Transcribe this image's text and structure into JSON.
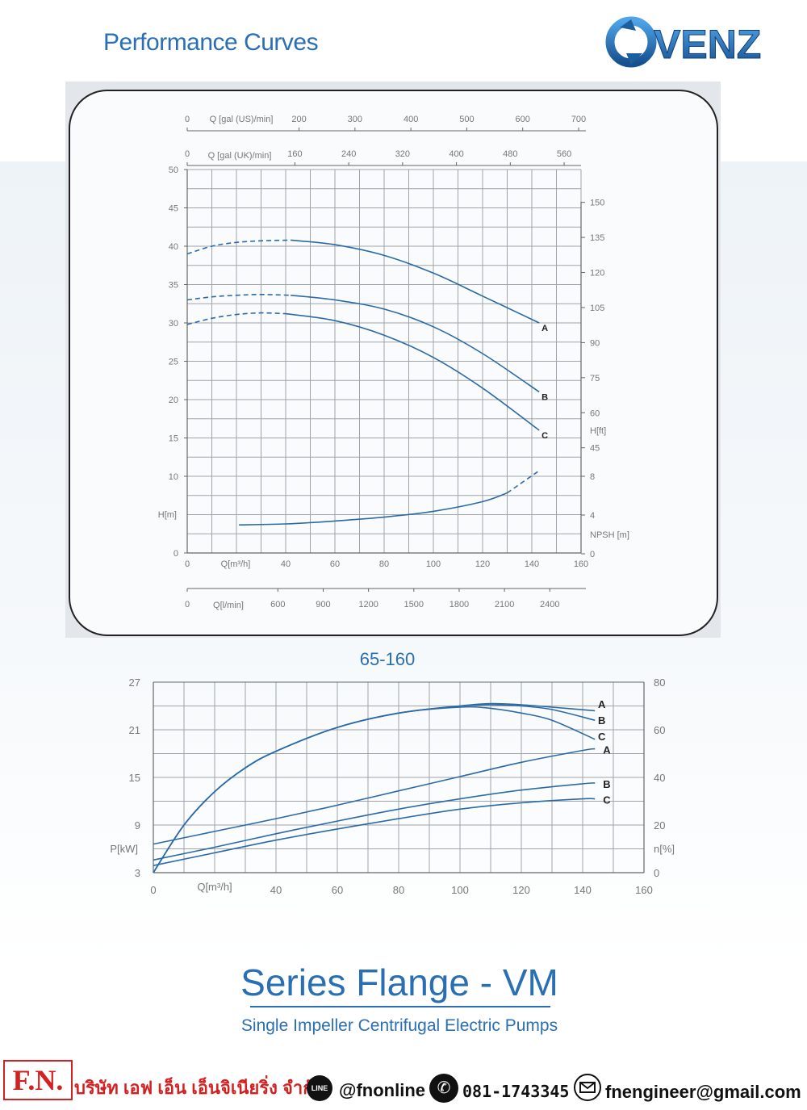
{
  "header": {
    "title": "Performance Curves",
    "logo_text": "OVENZ"
  },
  "chart_data": [
    {
      "type": "line",
      "axes": {
        "x_bottom": {
          "label": "Q[m³/h]",
          "range": [
            0,
            160
          ],
          "ticks": [
            "0",
            "40",
            "60",
            "80",
            "100",
            "120",
            "140",
            "160"
          ]
        },
        "x_top_us": {
          "label": "Q [gal (US)/min]",
          "ticks": [
            "0",
            "200",
            "300",
            "400",
            "500",
            "600",
            "700"
          ]
        },
        "x_top_uk": {
          "label": "Q [gal (UK)/min]",
          "ticks": [
            "0",
            "160",
            "240",
            "320",
            "400",
            "480",
            "560"
          ]
        },
        "x_lpm": {
          "label": "Q[l/min]",
          "ticks": [
            "0",
            "600",
            "900",
            "1200",
            "1500",
            "1800",
            "2100",
            "2400"
          ]
        },
        "y_left": {
          "label": "H[m]",
          "range": [
            0,
            50
          ],
          "ticks": [
            "0",
            "10",
            "15",
            "20",
            "25",
            "30",
            "35",
            "40",
            "45",
            "50"
          ]
        },
        "y_right_ft": {
          "label": "H[ft]",
          "ticks": [
            "90",
            "105",
            "120",
            "135",
            "150",
            "45",
            "60",
            "75"
          ]
        },
        "y_right_npsh": {
          "label": "NPSH [m]",
          "ticks": [
            "0",
            "4",
            "8"
          ]
        }
      },
      "grid": true,
      "series": [
        {
          "name": "A",
          "dashed_until": 42,
          "x": [
            0,
            10,
            20,
            30,
            42,
            60,
            80,
            100,
            120,
            143
          ],
          "y": [
            39,
            40,
            40.5,
            40.7,
            40.8,
            40.2,
            38.8,
            36.5,
            33.5,
            30
          ]
        },
        {
          "name": "B",
          "dashed_until": 42,
          "x": [
            0,
            10,
            20,
            30,
            42,
            60,
            80,
            100,
            120,
            143
          ],
          "y": [
            33,
            33.4,
            33.6,
            33.7,
            33.6,
            33,
            31.8,
            29.5,
            26,
            21
          ]
        },
        {
          "name": "C",
          "dashed_until": 40,
          "x": [
            0,
            10,
            20,
            30,
            40,
            60,
            80,
            100,
            120,
            143
          ],
          "y": [
            29.8,
            30.6,
            31.1,
            31.3,
            31.2,
            30.3,
            28.4,
            25.5,
            21.5,
            16
          ]
        },
        {
          "name": "NPSH",
          "dashed_from": 130,
          "x": [
            21,
            40,
            60,
            80,
            100,
            120,
            130,
            143
          ],
          "y": [
            2.9,
            3.0,
            3.3,
            3.7,
            4.3,
            5.3,
            6.2,
            8.5
          ]
        }
      ]
    },
    {
      "type": "line",
      "title": "65-160",
      "axes": {
        "x": {
          "label": "Q[m³/h]",
          "range": [
            0,
            160
          ],
          "ticks": [
            "0",
            "40",
            "60",
            "80",
            "100",
            "120",
            "140",
            "160"
          ]
        },
        "y_left": {
          "label": "P[kW]",
          "range": [
            3,
            27
          ],
          "ticks": [
            "3",
            "9",
            "15",
            "21",
            "27"
          ]
        },
        "y_right": {
          "label": "n[%]",
          "range": [
            0,
            80
          ],
          "ticks": [
            "0",
            "20",
            "40",
            "60",
            "80"
          ]
        }
      },
      "grid": true,
      "power_series": [
        {
          "name": "A",
          "x": [
            0,
            20,
            40,
            60,
            80,
            100,
            120,
            140,
            144
          ],
          "y": [
            6.6,
            8.2,
            9.8,
            11.5,
            13.3,
            15.1,
            16.9,
            18.4,
            18.6
          ]
        },
        {
          "name": "B",
          "x": [
            0,
            20,
            40,
            60,
            80,
            100,
            120,
            140,
            144
          ],
          "y": [
            4.6,
            6.2,
            7.9,
            9.5,
            11.0,
            12.3,
            13.4,
            14.2,
            14.3
          ]
        },
        {
          "name": "C",
          "x": [
            0,
            20,
            40,
            60,
            80,
            100,
            120,
            140,
            144
          ],
          "y": [
            3.9,
            5.5,
            7.1,
            8.5,
            9.8,
            11.0,
            11.8,
            12.3,
            12.3
          ]
        }
      ],
      "efficiency_series": [
        {
          "name": "A",
          "x": [
            0,
            10,
            20,
            30,
            40,
            60,
            80,
            100,
            110,
            120,
            130,
            144
          ],
          "y": [
            0,
            20,
            34,
            44,
            51,
            61,
            67,
            70,
            71,
            70.5,
            69.5,
            68
          ]
        },
        {
          "name": "B",
          "x": [
            0,
            10,
            20,
            30,
            40,
            60,
            80,
            100,
            110,
            120,
            130,
            144
          ],
          "y": [
            0,
            20,
            34,
            44,
            51,
            61,
            67,
            70,
            70.5,
            70,
            68.5,
            64
          ]
        },
        {
          "name": "C",
          "x": [
            0,
            10,
            20,
            30,
            40,
            60,
            80,
            100,
            110,
            120,
            130,
            144
          ],
          "y": [
            0,
            20,
            34,
            44,
            51,
            61,
            67,
            69.5,
            69,
            67,
            64,
            56
          ]
        }
      ]
    }
  ],
  "footer": {
    "title": "Series Flange - VM",
    "subtitle": "Single Impeller Centrifugal Electric Pumps"
  },
  "contact": {
    "brand": "F.N.",
    "company": "บริษัท เอฟ เอ็น เอ็นจิเนียริ่ง จำกัด",
    "line_icon": "LINE",
    "line_id": "@fnonline",
    "phone": "081-1743345",
    "email": "fnengineer@gmail.com"
  },
  "colors": {
    "accent": "#2a6fb4",
    "curve": "#2b6aa8",
    "grid": "#9ea4aa",
    "brand_red": "#d42020"
  }
}
